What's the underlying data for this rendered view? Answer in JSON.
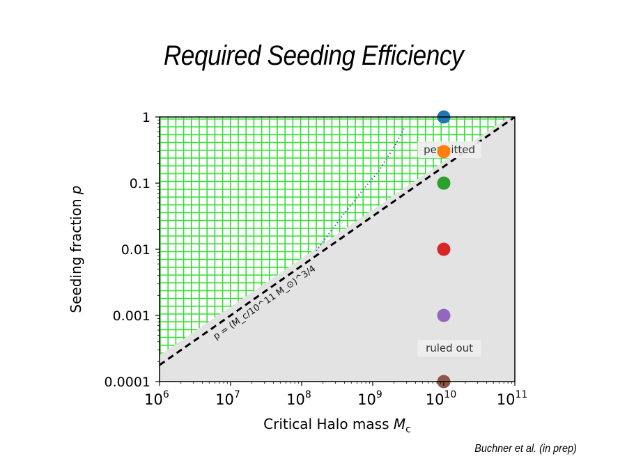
{
  "slide": {
    "title": "Required Seeding Efficiency",
    "citation": "Buchner et al. (in prep)"
  },
  "chart_data": {
    "type": "scatter",
    "xlabel": "Critical Halo mass",
    "xlabel_symbol": "M",
    "xlabel_subscript": "c",
    "ylabel": "Seeding fraction",
    "ylabel_symbol": "p",
    "xscale": "log",
    "yscale": "log",
    "xlim": [
      1000000,
      100000000000
    ],
    "ylim": [
      0.0001,
      1
    ],
    "x_ticks": [
      {
        "base": "10",
        "exp": "6"
      },
      {
        "base": "10",
        "exp": "7"
      },
      {
        "base": "10",
        "exp": "8"
      },
      {
        "base": "10",
        "exp": "9"
      },
      {
        "base": "10",
        "exp": "10"
      },
      {
        "base": "10",
        "exp": "11"
      }
    ],
    "y_ticks": [
      "0.0001",
      "0.001",
      "0.01",
      "0.1",
      "1"
    ],
    "grid": false,
    "regions": [
      {
        "name": "permitted",
        "label": "permitted",
        "fill": "#33dd33",
        "hatch": "grid",
        "x": 12000000000,
        "y": 0.32
      },
      {
        "name": "ruled-out",
        "label": "ruled out",
        "fill": "#e3e3e3",
        "x": 12000000000,
        "y": 0.00032
      }
    ],
    "boundary_line": {
      "label": "p = (M_c/10^11 M_⊙)^3/4",
      "style": "dashed",
      "color": "#000000",
      "exponent": 0.75,
      "pivot_x": 100000000000
    },
    "dotted_curve": {
      "color": "#4455dd",
      "x": [
        160000000,
        250000000,
        400000000,
        700000000,
        1200000000,
        2000000000,
        2800000000
      ],
      "y": [
        0.0095,
        0.018,
        0.035,
        0.075,
        0.15,
        0.35,
        0.7
      ]
    },
    "points": [
      {
        "x": 10000000000,
        "y": 1,
        "color": "#1f77b4"
      },
      {
        "x": 10000000000,
        "y": 0.3,
        "color": "#ff7f0e"
      },
      {
        "x": 10000000000,
        "y": 0.1,
        "color": "#2ca02c"
      },
      {
        "x": 10000000000,
        "y": 0.01,
        "color": "#d62728"
      },
      {
        "x": 10000000000,
        "y": 0.001,
        "color": "#9467bd"
      },
      {
        "x": 10000000000,
        "y": 0.0001,
        "color": "#8c564b"
      }
    ]
  }
}
